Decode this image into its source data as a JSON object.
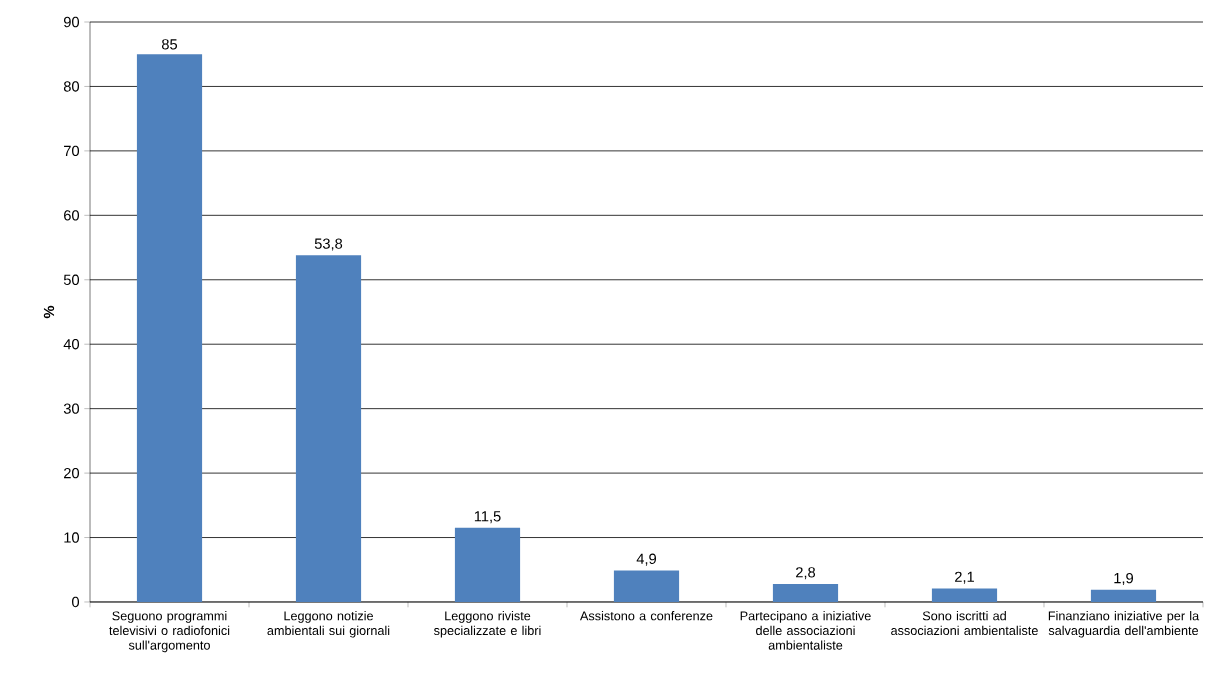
{
  "chart_data": {
    "type": "bar",
    "ylabel": "%",
    "categories": [
      "Seguono programmi televisivi o radiofonici sull'argomento",
      "Leggono notizie ambientali sui giornali",
      "Leggono riviste specializzate e libri",
      "Assistono a conferenze",
      "Partecipano a iniziative delle associazioni ambientaliste",
      "Sono iscritti ad associazioni ambientaliste",
      "Finanziano iniziative per la salvaguardia dell'ambiente"
    ],
    "values": [
      85,
      53.8,
      11.5,
      4.9,
      2.8,
      2.1,
      1.9
    ],
    "value_labels": [
      "85",
      "53,8",
      "11,5",
      "4,9",
      "2,8",
      "2,1",
      "1,9"
    ],
    "color": "#4f81bd",
    "ylim": [
      0,
      90
    ],
    "yticks": [
      0,
      10,
      20,
      30,
      40,
      50,
      60,
      70,
      80,
      90
    ],
    "grid": "y"
  }
}
